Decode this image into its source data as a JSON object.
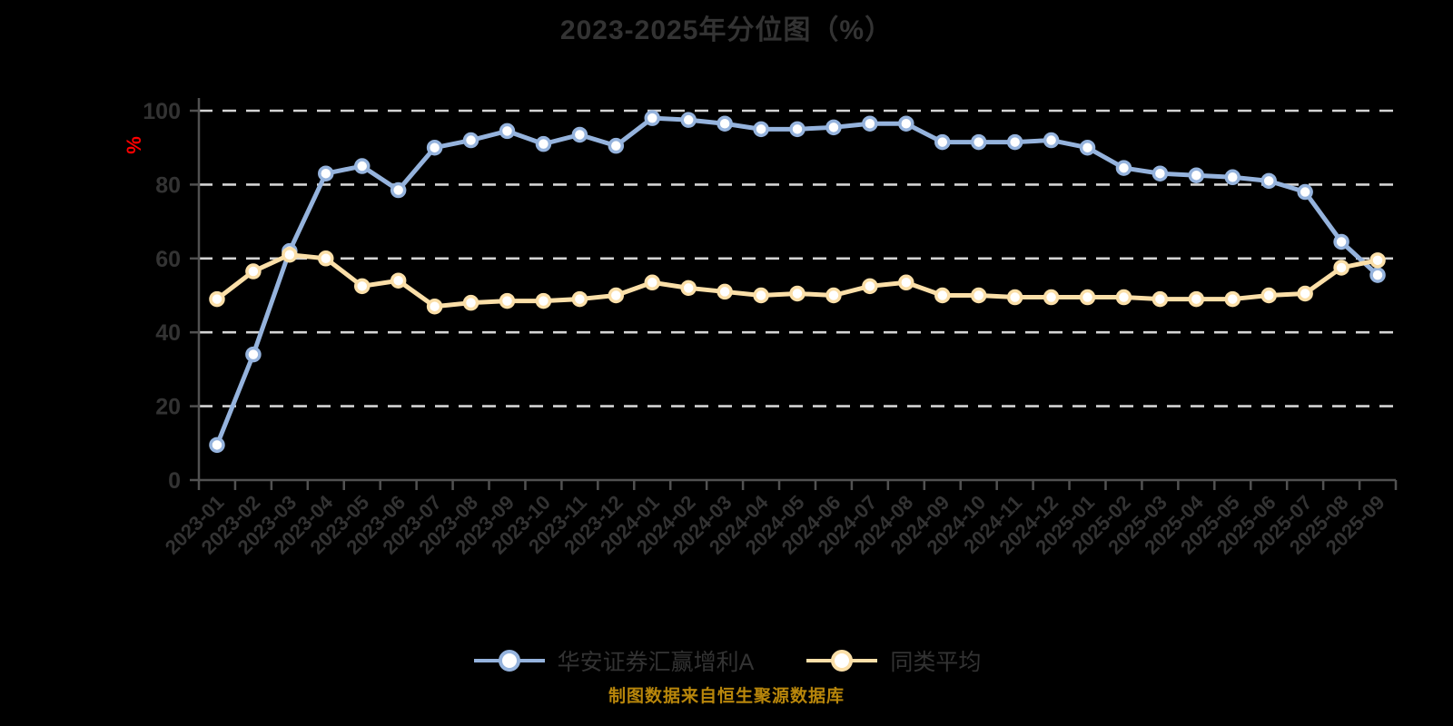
{
  "page": {
    "background": "#000000"
  },
  "chart_data": {
    "type": "line",
    "title": "2023-2025年分位图（%）",
    "caption": "制图数据来自恒生聚源数据库",
    "ylabel": "%",
    "xlabel": "",
    "ylim": [
      0,
      100
    ],
    "y_ticks": [
      0,
      20,
      40,
      60,
      80,
      100
    ],
    "grid": "horizontal-dashed",
    "legend_position": "bottom",
    "x_label_rotation": 45,
    "categories": [
      "2023-01",
      "2023-02",
      "2023-03",
      "2023-04",
      "2023-05",
      "2023-06",
      "2023-07",
      "2023-08",
      "2023-09",
      "2023-10",
      "2023-11",
      "2023-12",
      "2024-01",
      "2024-02",
      "2024-03",
      "2024-04",
      "2024-05",
      "2024-06",
      "2024-07",
      "2024-08",
      "2024-09",
      "2024-10",
      "2024-11",
      "2024-12",
      "2025-01",
      "2025-02",
      "2025-03",
      "2025-04",
      "2025-05",
      "2025-06",
      "2025-07",
      "2025-08",
      "2025-09"
    ],
    "series": [
      {
        "name": "华安证券汇赢增利A",
        "color": "#95b3dd",
        "values": [
          9.5,
          34,
          62,
          83,
          85,
          78.5,
          90,
          92,
          94.5,
          91,
          93.5,
          90.5,
          98,
          97.5,
          96.5,
          95,
          95,
          95.5,
          96.5,
          96.5,
          91.5,
          91.5,
          91.5,
          92,
          90,
          84.5,
          83,
          82.5,
          82,
          81,
          78,
          64.5,
          55.5
        ]
      },
      {
        "name": "同类平均",
        "color": "#fbdfa8",
        "values": [
          49,
          56.5,
          61,
          60,
          52.5,
          54,
          47,
          48,
          48.5,
          48.5,
          49,
          50,
          53.5,
          52,
          51,
          50,
          50.5,
          50,
          52.5,
          53.5,
          50,
          50,
          49.5,
          49.5,
          49.5,
          49.5,
          49,
          49,
          49,
          50,
          50.5,
          57.5,
          59.5
        ]
      }
    ],
    "colors": {
      "background": "#000000",
      "title": "#333333",
      "axis": "#515151",
      "grid": "#d4d4d4",
      "tick_label": "#333333",
      "ylabel": "#ff0000",
      "caption": "#b8860b",
      "marker_fill": "#ffffff"
    }
  }
}
